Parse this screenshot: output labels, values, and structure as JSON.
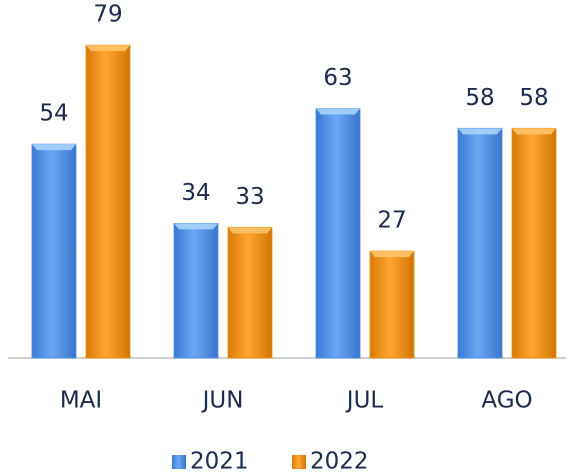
{
  "chart_data": {
    "type": "bar",
    "categories": [
      "MAI",
      "JUN",
      "JUL",
      "AGO"
    ],
    "series": [
      {
        "name": "2021",
        "color": "#4a8fe8",
        "values": [
          54,
          34,
          63,
          58
        ]
      },
      {
        "name": "2022",
        "color": "#f0900e",
        "values": [
          79,
          33,
          27,
          58
        ]
      }
    ]
  }
}
